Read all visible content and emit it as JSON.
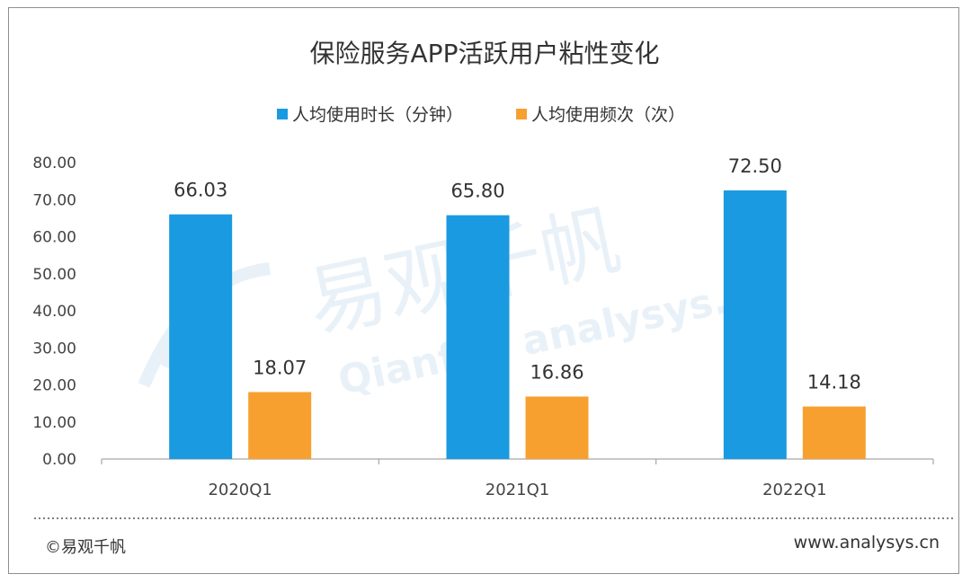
{
  "footer": {
    "copyright": "©易观千帆",
    "website": "www.analysys.cn"
  },
  "watermark": {
    "text_cn": "易观千帆",
    "text_en": "Qianfan analysys.cn"
  },
  "colors": {
    "series1": "#1a9ae0",
    "series2": "#f7a030",
    "axis": "#a6a6a6"
  },
  "chart_data": {
    "type": "bar",
    "title": "保险服务APP活跃用户粘性变化",
    "categories": [
      "2020Q1",
      "2021Q1",
      "2022Q1"
    ],
    "series": [
      {
        "name": "人均使用时长（分钟）",
        "values": [
          66.03,
          65.8,
          72.5
        ],
        "labels": [
          "66.03",
          "65.80",
          "72.50"
        ]
      },
      {
        "name": "人均使用频次（次）",
        "values": [
          18.07,
          16.86,
          14.18
        ],
        "labels": [
          "18.07",
          "16.86",
          "14.18"
        ]
      }
    ],
    "ylim": [
      0,
      80
    ],
    "yticks": [
      "0.00",
      "10.00",
      "20.00",
      "30.00",
      "40.00",
      "50.00",
      "60.00",
      "70.00",
      "80.00"
    ],
    "legend_position": "top",
    "grid": false
  }
}
